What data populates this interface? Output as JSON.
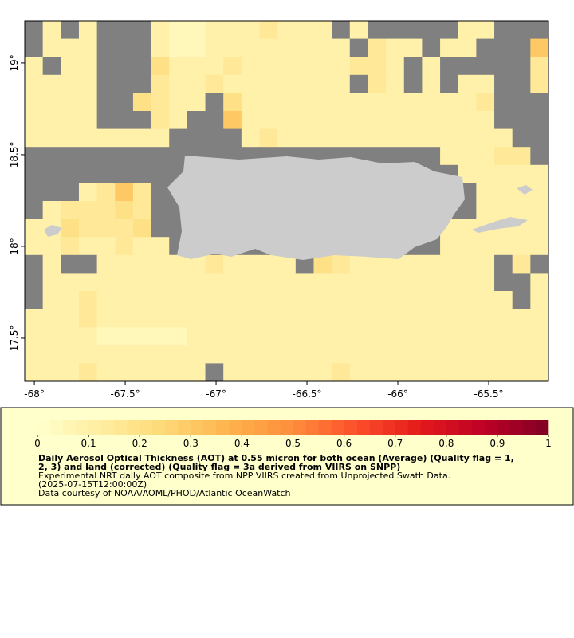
{
  "chart_data": {
    "type": "heatmap",
    "lonlim": [
      -68.053,
      -65.171
    ],
    "latlim": [
      17.265,
      19.23
    ],
    "xticks": [
      {
        "value": -68,
        "label": "-68°"
      },
      {
        "value": -67.5,
        "label": "-67.5°"
      },
      {
        "value": -67,
        "label": "-67°"
      },
      {
        "value": -66.5,
        "label": "-66.5°"
      },
      {
        "value": -66,
        "label": "-66°"
      },
      {
        "value": -65.5,
        "label": "-65.5°"
      }
    ],
    "yticks": [
      {
        "value": 17.5,
        "label": "17.5°"
      },
      {
        "value": 18,
        "label": "18°"
      },
      {
        "value": 18.5,
        "label": "18.5°"
      },
      {
        "value": 19,
        "label": "19°"
      }
    ],
    "nodata_color": "#808080",
    "colormap": [
      "#ffffcc",
      "#ffeda0",
      "#fed976",
      "#feb24c",
      "#fd8d3c",
      "#fc4e2a",
      "#e31a1c",
      "#bd0026",
      "#800026"
    ],
    "colorbar_lim": [
      0,
      1
    ],
    "colorbar_ticks": [
      0,
      0.1,
      0.2,
      0.3,
      0.4,
      0.5,
      0.6,
      0.7,
      0.8,
      0.9,
      1
    ],
    "grid": [
      [
        null,
        0.1,
        null,
        0.1,
        null,
        null,
        null,
        0.1,
        0.05,
        0.05,
        0.1,
        0.1,
        0.1,
        0.15,
        0.1,
        0.1,
        0.1,
        null,
        0.1,
        null,
        null,
        null,
        null,
        null,
        0.1,
        0.1,
        null,
        null,
        null
      ],
      [
        null,
        0.1,
        0.1,
        0.1,
        null,
        null,
        null,
        0.1,
        0.05,
        0.05,
        0.1,
        0.1,
        0.1,
        0.1,
        0.1,
        0.1,
        0.1,
        0.1,
        null,
        0.15,
        0.1,
        0.1,
        null,
        0.1,
        0.1,
        null,
        null,
        null,
        0.3
      ],
      [
        0.1,
        null,
        0.1,
        0.1,
        null,
        null,
        null,
        0.2,
        0.1,
        0.1,
        0.1,
        0.15,
        0.1,
        0.1,
        0.1,
        0.1,
        0.1,
        0.1,
        0.15,
        0.15,
        0.1,
        null,
        0.1,
        null,
        null,
        null,
        null,
        null,
        0.15
      ],
      [
        0.1,
        0.1,
        0.1,
        0.1,
        null,
        null,
        null,
        0.15,
        0.1,
        0.1,
        0.15,
        0.1,
        0.1,
        0.1,
        0.1,
        0.1,
        0.1,
        0.1,
        null,
        0.15,
        0.1,
        null,
        0.1,
        null,
        0.1,
        0.1,
        null,
        null,
        0.15
      ],
      [
        0.1,
        0.1,
        0.1,
        0.1,
        null,
        null,
        0.2,
        0.15,
        0.1,
        0.1,
        null,
        0.2,
        0.1,
        0.1,
        0.1,
        0.1,
        0.1,
        0.1,
        0.1,
        0.1,
        0.1,
        0.1,
        0.1,
        0.1,
        0.1,
        0.15,
        null,
        null,
        null
      ],
      [
        0.1,
        0.1,
        0.1,
        0.1,
        null,
        null,
        null,
        0.15,
        0.1,
        null,
        null,
        0.3,
        0.1,
        0.1,
        0.1,
        0.1,
        0.1,
        0.1,
        0.1,
        0.1,
        0.1,
        0.1,
        0.1,
        0.1,
        0.1,
        0.1,
        null,
        null,
        null
      ],
      [
        0.1,
        0.1,
        0.1,
        0.1,
        0.1,
        0.1,
        0.1,
        0.1,
        null,
        null,
        null,
        null,
        0.1,
        0.15,
        0.1,
        0.1,
        0.1,
        0.1,
        0.1,
        0.1,
        0.1,
        0.1,
        0.1,
        0.1,
        0.1,
        0.1,
        0.1,
        null,
        null
      ],
      [
        null,
        null,
        null,
        null,
        null,
        null,
        null,
        null,
        null,
        null,
        null,
        null,
        null,
        null,
        null,
        null,
        null,
        null,
        null,
        null,
        null,
        null,
        null,
        0.1,
        0.1,
        0.1,
        0.15,
        0.15,
        null
      ],
      [
        null,
        null,
        null,
        null,
        null,
        null,
        null,
        null,
        null,
        null,
        null,
        null,
        null,
        null,
        null,
        null,
        null,
        null,
        null,
        null,
        null,
        null,
        null,
        null,
        0.1,
        0.1,
        0.1,
        0.1,
        0.1
      ],
      [
        null,
        null,
        null,
        0.1,
        0.15,
        0.3,
        0.15,
        null,
        null,
        null,
        null,
        null,
        null,
        null,
        null,
        null,
        null,
        null,
        null,
        null,
        null,
        null,
        null,
        null,
        null,
        0.1,
        0.1,
        0.1,
        0.1
      ],
      [
        null,
        0.1,
        0.15,
        0.15,
        0.15,
        0.2,
        0.15,
        null,
        null,
        null,
        null,
        null,
        null,
        null,
        null,
        null,
        null,
        null,
        null,
        null,
        null,
        null,
        null,
        null,
        null,
        0.1,
        0.1,
        0.1,
        0.1
      ],
      [
        0.1,
        0.1,
        0.2,
        0.15,
        0.15,
        0.15,
        0.2,
        null,
        null,
        null,
        null,
        null,
        null,
        null,
        null,
        null,
        null,
        null,
        null,
        null,
        null,
        null,
        null,
        0.1,
        0.1,
        0.1,
        0.1,
        0.1,
        0.1
      ],
      [
        0.1,
        0.1,
        0.15,
        0.1,
        0.1,
        0.15,
        0.1,
        0.1,
        null,
        null,
        null,
        null,
        null,
        null,
        null,
        null,
        null,
        null,
        null,
        null,
        null,
        null,
        null,
        0.1,
        0.1,
        0.1,
        0.1,
        0.1,
        0.1
      ],
      [
        null,
        0.1,
        null,
        null,
        0.1,
        0.1,
        0.1,
        0.1,
        0.1,
        0.1,
        0.15,
        0.1,
        0.1,
        0.1,
        0.1,
        null,
        0.2,
        0.15,
        0.1,
        0.1,
        0.1,
        0.1,
        0.1,
        0.1,
        0.1,
        0.1,
        null,
        0.15,
        null
      ],
      [
        null,
        0.1,
        0.1,
        0.1,
        0.1,
        0.1,
        0.1,
        0.1,
        0.1,
        0.1,
        0.1,
        0.1,
        0.1,
        0.1,
        0.1,
        0.1,
        0.1,
        0.1,
        0.1,
        0.1,
        0.1,
        0.1,
        0.1,
        0.1,
        0.1,
        0.1,
        null,
        null,
        0.1
      ],
      [
        null,
        0.1,
        0.1,
        0.15,
        0.1,
        0.1,
        0.1,
        0.1,
        0.1,
        0.1,
        0.1,
        0.1,
        0.1,
        0.1,
        0.1,
        0.1,
        0.1,
        0.1,
        0.1,
        0.1,
        0.1,
        0.1,
        0.1,
        0.1,
        0.1,
        0.1,
        0.1,
        null,
        0.1
      ],
      [
        0.1,
        0.1,
        0.1,
        0.15,
        0.1,
        0.1,
        0.1,
        0.1,
        0.1,
        0.1,
        0.1,
        0.1,
        0.1,
        0.1,
        0.1,
        0.1,
        0.1,
        0.1,
        0.1,
        0.1,
        0.1,
        0.1,
        0.1,
        0.1,
        0.1,
        0.1,
        0.1,
        0.1,
        0.1
      ],
      [
        0.1,
        0.1,
        0.1,
        0.1,
        0.05,
        0.05,
        0.05,
        0.05,
        0.05,
        0.1,
        0.1,
        0.1,
        0.1,
        0.1,
        0.1,
        0.1,
        0.1,
        0.1,
        0.1,
        0.1,
        0.1,
        0.1,
        0.1,
        0.1,
        0.1,
        0.1,
        0.1,
        0.1,
        0.1
      ],
      [
        0.1,
        0.1,
        0.1,
        0.1,
        0.1,
        0.1,
        0.1,
        0.1,
        0.1,
        0.1,
        0.1,
        0.1,
        0.1,
        0.1,
        0.1,
        0.1,
        0.1,
        0.1,
        0.1,
        0.1,
        0.1,
        0.1,
        0.1,
        0.1,
        0.1,
        0.1,
        0.1,
        0.1,
        0.1
      ],
      [
        0.1,
        0.1,
        0.1,
        0.15,
        0.1,
        0.1,
        0.1,
        0.1,
        0.1,
        0.1,
        null,
        0.1,
        0.1,
        0.1,
        0.1,
        0.1,
        0.1,
        0.15,
        0.1,
        0.1,
        0.1,
        0.1,
        0.1,
        0.1,
        0.1,
        0.1,
        0.1,
        0.1,
        0.1
      ]
    ],
    "title_lines": [
      "Daily Aerosol Optical Thickness (AOT) at 0.55 micron for both ocean (Average) (Quality flag = 1,",
      "2, 3) and land (corrected) (Quality flag = 3a derived from VIIRS on SNPP)"
    ],
    "subtitle_lines": [
      "Experimental NRT daily AOT composite from NPP VIIRS created from Unprojected Swath Data.",
      "(2025-07-15T12:00:00Z)",
      "Data courtesy of NOAA/AOML/PHOD/Atlantic OceanWatch"
    ]
  }
}
